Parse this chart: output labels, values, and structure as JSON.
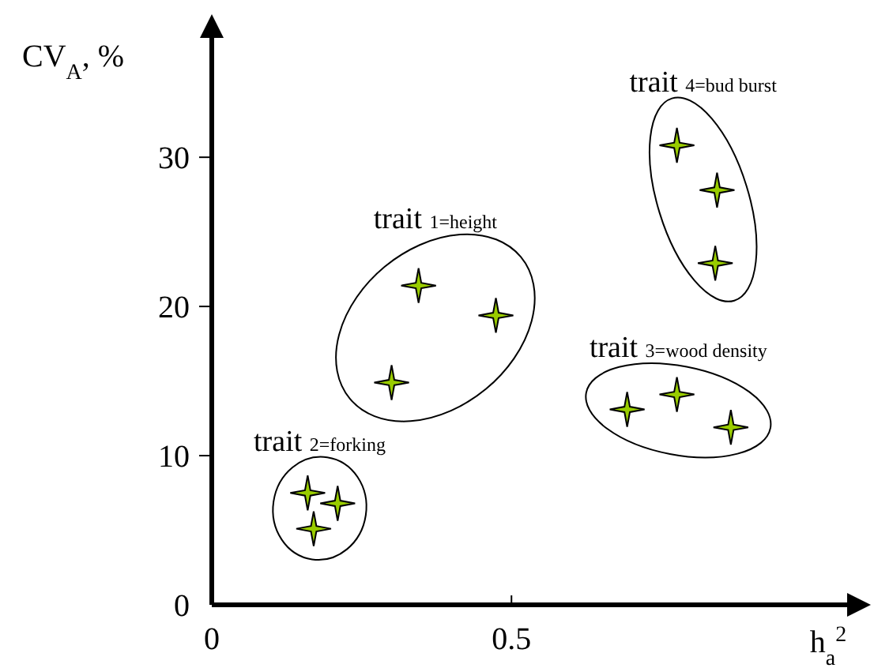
{
  "chart_data": {
    "type": "scatter",
    "xlabel": "h$_{a}$$^{2}$",
    "ylabel": "CV$_{A}$, %",
    "xlim": [
      0,
      1.06
    ],
    "ylim": [
      0,
      38
    ],
    "xticks": [
      0,
      0.5
    ],
    "yticks": [
      0,
      10,
      20,
      30
    ],
    "grid": false,
    "legend": false,
    "marker": "star",
    "series": [
      {
        "name": "trait 1=height",
        "color": "#99cc00",
        "x": [
          0.345,
          0.3,
          0.474
        ],
        "values": [
          21.4,
          14.9,
          19.4
        ]
      },
      {
        "name": "trait 2=forking",
        "color": "#99cc00",
        "x": [
          0.16,
          0.21,
          0.17
        ],
        "values": [
          7.5,
          6.8,
          5.1
        ]
      },
      {
        "name": "trait 3=wood density",
        "color": "#99cc00",
        "x": [
          0.693,
          0.776,
          0.866
        ],
        "values": [
          13.1,
          14.1,
          11.9
        ]
      },
      {
        "name": "trait 4=bud burst",
        "color": "#99cc00",
        "x": [
          0.776,
          0.843,
          0.84
        ],
        "values": [
          30.8,
          27.8,
          22.9
        ]
      }
    ]
  }
}
